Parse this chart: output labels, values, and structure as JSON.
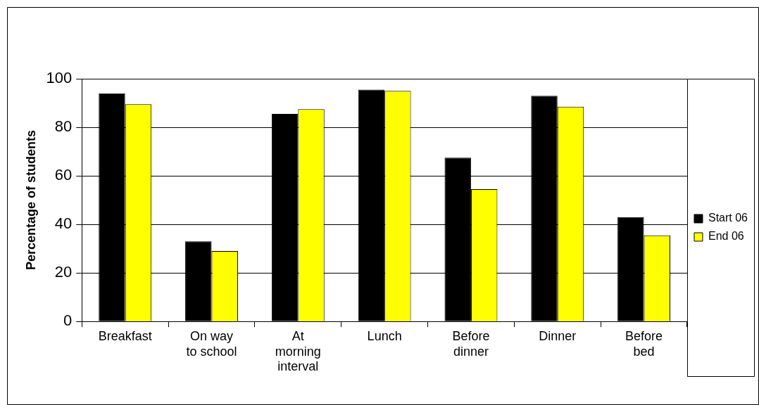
{
  "chart_data": {
    "type": "bar",
    "ylabel": "Percentage of students",
    "categories": [
      "Breakfast",
      "On way to school",
      "At morning interval",
      "Lunch",
      "Before dinner",
      "Dinner",
      "Before bed"
    ],
    "series": [
      {
        "name": "Start 06",
        "color": "#000000",
        "values": [
          94,
          33,
          85.5,
          95.5,
          67.5,
          93,
          43
        ]
      },
      {
        "name": "End 06",
        "color": "#ffff00",
        "values": [
          89.5,
          29,
          87.5,
          95,
          54.5,
          88.5,
          35.5
        ]
      }
    ],
    "ylim": [
      0,
      100
    ],
    "yticks": [
      0,
      20,
      40,
      60,
      80,
      100
    ],
    "grid": "y",
    "legend": "right"
  }
}
